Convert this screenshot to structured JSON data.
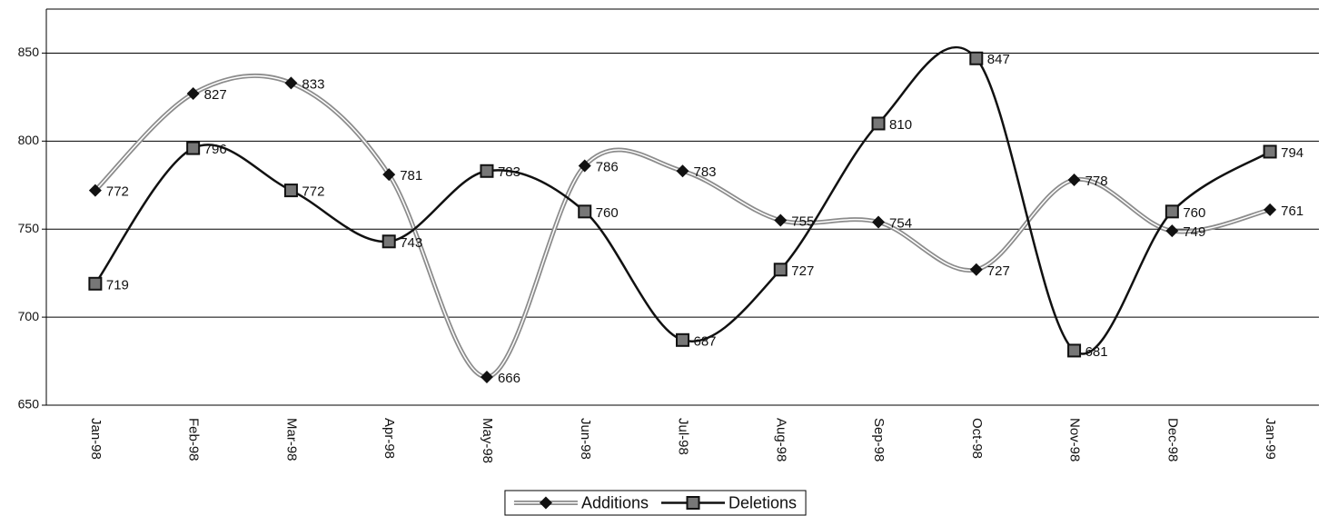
{
  "chart_data": {
    "type": "line",
    "categories": [
      "Jan-98",
      "Feb-98",
      "Mar-98",
      "Apr-98",
      "May-98",
      "Jun-98",
      "Jul-98",
      "Aug-98",
      "Sep-98",
      "Oct-98",
      "Nov-98",
      "Dec-98",
      "Jan-99"
    ],
    "series": [
      {
        "name": "Additions",
        "color": "#8c8c8c",
        "marker": "diamond",
        "values": [
          772,
          827,
          833,
          781,
          666,
          786,
          783,
          755,
          754,
          727,
          778,
          749,
          761
        ]
      },
      {
        "name": "Deletions",
        "color": "#111111",
        "marker": "square",
        "values": [
          719,
          796,
          772,
          743,
          783,
          760,
          687,
          727,
          810,
          847,
          681,
          760,
          794
        ]
      }
    ],
    "ylim": [
      650,
      875
    ],
    "yticks": [
      650,
      700,
      750,
      800,
      850
    ],
    "grid": true,
    "smooth": true,
    "legend": "bottom"
  }
}
